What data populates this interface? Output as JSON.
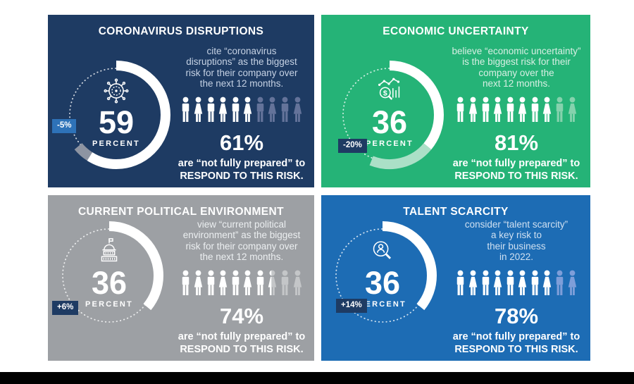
{
  "page": {
    "background": "#ffffff",
    "bottom_bar_color": "#000000"
  },
  "chart_data": [
    {
      "type": "pie",
      "title": "CORONAVIRUS DISRUPTIONS",
      "labels": [
        "cite “coronavirus disruptions” as the biggest risk for their company over the next 12 months",
        "remainder"
      ],
      "values": [
        59,
        41
      ],
      "center_label": "59 PERCENT",
      "change_vs_prior": "-5%",
      "delta_segment_percent": 5,
      "not_fully_prepared_percent": 61,
      "pictogram": {
        "total": 10,
        "highlighted": 6.1
      }
    },
    {
      "type": "pie",
      "title": "ECONOMIC UNCERTAINTY",
      "labels": [
        "believe “economic uncertainty” is the biggest risk for their company over the next 12 months",
        "remainder"
      ],
      "values": [
        36,
        64
      ],
      "center_label": "36 PERCENT",
      "change_vs_prior": "-20%",
      "delta_segment_percent": 20,
      "not_fully_prepared_percent": 81,
      "pictogram": {
        "total": 10,
        "highlighted": 8.1
      }
    },
    {
      "type": "pie",
      "title": "CURRENT POLITICAL ENVIRONMENT",
      "labels": [
        "view “current political environment” as the biggest risk for their company over the next 12 months",
        "remainder"
      ],
      "values": [
        36,
        64
      ],
      "center_label": "36 PERCENT",
      "change_vs_prior": "+6%",
      "delta_segment_percent": 0,
      "not_fully_prepared_percent": 74,
      "pictogram": {
        "total": 10,
        "highlighted": 7.4
      }
    },
    {
      "type": "pie",
      "title": "TALENT SCARCITY",
      "labels": [
        "consider “talent scarcity” a key risk to their business in 2022",
        "remainder"
      ],
      "values": [
        36,
        64
      ],
      "center_label": "36 PERCENT",
      "change_vs_prior": "+14%",
      "delta_segment_percent": 0,
      "not_fully_prepared_percent": 78,
      "pictogram": {
        "total": 10,
        "highlighted": 7.8
      }
    }
  ],
  "panels": [
    {
      "title": "CORONAVIRUS DISRUPTIONS",
      "bg": "#1e3b63",
      "change_badge": {
        "label": "-5%",
        "bg": "#2e72b8"
      },
      "donut": {
        "value": "59",
        "unit_label": "PERCENT",
        "percent": 59,
        "delta_percent": 5,
        "delta_color": "#8d94a2",
        "arc_color": "#ffffff",
        "icon": "virus-icon"
      },
      "statement": "cite “coronavirus\ndisruptions” as the biggest\nrisk for their company over\nthe next 12 months.",
      "statement_color": "#c6d2e4",
      "people": {
        "total": 10,
        "highlighted": 6.1,
        "highlight_color": "#ffffff",
        "faded_color": "#64739a"
      },
      "prepared": {
        "percent": "61%",
        "line1": "are “not fully prepared” to",
        "line2": "RESPOND TO THIS RISK."
      }
    },
    {
      "title": "ECONOMIC UNCERTAINTY",
      "bg": "#25b377",
      "change_badge": {
        "label": "-20%",
        "bg": "#1e3b63"
      },
      "donut": {
        "value": "36",
        "unit_label": "PERCENT",
        "percent": 36,
        "delta_percent": 20,
        "delta_color": "#abe0c7",
        "arc_color": "#ffffff",
        "icon": "economic-analysis-icon"
      },
      "statement": "believe “economic uncertainty”\nis the biggest risk for their\ncompany over the\nnext 12 months.",
      "statement_color": "#d8efe4",
      "people": {
        "total": 10,
        "highlighted": 8.1,
        "highlight_color": "#ffffff",
        "faded_color": "#85d2ad"
      },
      "prepared": {
        "percent": "81%",
        "line1": "are “not fully prepared” to",
        "line2": "RESPOND TO THIS RISK."
      }
    },
    {
      "title": "CURRENT POLITICAL ENVIRONMENT",
      "bg": "#9da0a4",
      "change_badge": {
        "label": "+6%",
        "bg": "#1e3b63"
      },
      "donut": {
        "value": "36",
        "unit_label": "PERCENT",
        "percent": 36,
        "delta_percent": 0,
        "delta_color": "",
        "arc_color": "#ffffff",
        "icon": "capitol-icon"
      },
      "statement": "view “current political\nenvironment” as the biggest\nrisk for their company over\nthe next 12 months.",
      "statement_color": "#eceff1",
      "people": {
        "total": 10,
        "highlighted": 7.4,
        "highlight_color": "#ffffff",
        "faded_color": "#c4c6c8"
      },
      "prepared": {
        "percent": "74%",
        "line1": "are “not fully prepared” to",
        "line2": "RESPOND TO THIS RISK."
      }
    },
    {
      "title": "TALENT SCARCITY",
      "bg": "#1d6cb4",
      "change_badge": {
        "label": "+14%",
        "bg": "#1e3b63"
      },
      "donut": {
        "value": "36",
        "unit_label": "PERCENT",
        "percent": 36,
        "delta_percent": 0,
        "delta_color": "",
        "arc_color": "#ffffff",
        "icon": "talent-search-icon"
      },
      "statement": "consider “talent scarcity”\na key risk to\ntheir business\nin 2022.",
      "statement_color": "#cfe0f1",
      "people": {
        "total": 10,
        "highlighted": 7.8,
        "highlight_color": "#ffffff",
        "faded_color": "#7e9ed9"
      },
      "prepared": {
        "percent": "78%",
        "line1": "are “not fully prepared” to",
        "line2": "RESPOND TO THIS RISK."
      }
    }
  ]
}
